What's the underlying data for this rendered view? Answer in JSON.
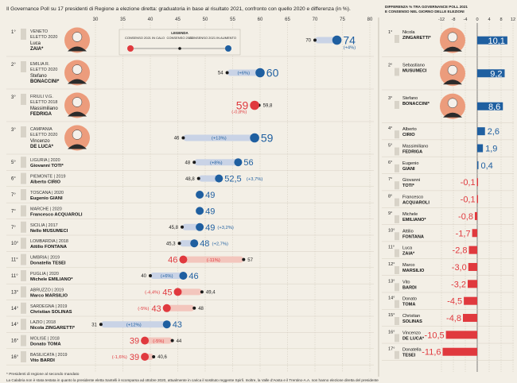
{
  "header": {
    "left_title": "Il Governance Poll su 17 presidenti di Regione a elezione diretta: graduatoria in base al risultato 2021, confronto con quello 2020 e differenza (in %).",
    "right_title_line1": "DIFFERENZA % TRA GOVERNANCE POLL 2021",
    "right_title_line2": "E CONSENSO NEL GIORNO DELLE ELEZIONI"
  },
  "legend": {
    "title": "LEGENDA",
    "down": "CONSENSO 2021 IN CALO",
    "mid": "CONSENSO 2020",
    "up": "CONSENSO 2021 IN AUMENTO"
  },
  "footnotes": {
    "note1": "* Presidenti di regione al secondo mandato",
    "note2": "La Calabria non è stata testata in quanto la presidente eletta Santelli è scomparsa ad ottobre 2020, attualmente in carica il sostituto reggente Spirlì. Inoltre, la Valle d'Aosta e il Trentino-A.A. non hanno elezione diretta del presidente"
  },
  "colors": {
    "increase": "#1f5fa0",
    "decrease": "#e0393e",
    "prev": "#1a1a1a",
    "band_up": "#c9d3e6",
    "band_down": "#f3c6bd",
    "background": "#f3efe6",
    "avatar": "#ec9c7c",
    "rank_box": "#d8d3c8"
  },
  "chart_data": [
    {
      "type": "dot-arrow",
      "x_ticks": [
        30,
        35,
        40,
        45,
        50,
        55,
        60,
        65,
        70,
        75,
        80
      ],
      "xlim": [
        30,
        80
      ],
      "rows": [
        {
          "rank": "1°",
          "region": "VENETO",
          "elected": "ELETTO 2020",
          "first": "Luca",
          "last": "ZAIA*",
          "v2020": 70,
          "v2021": 74,
          "diff": "(+4%)",
          "diff_in_band": false,
          "trend": "up",
          "prev_label": "70",
          "value_label": "74"
        },
        {
          "rank": "2°",
          "region": "EMILIA R.",
          "elected": "ELETTO 2020",
          "first": "Stefano",
          "last": "BONACCINI*",
          "v2020": 54,
          "v2021": 60,
          "diff": "(+6%)",
          "diff_in_band": true,
          "trend": "up",
          "prev_label": "54",
          "value_label": "60"
        },
        {
          "rank": "3°",
          "region": "FRIULI V.G.",
          "elected": "ELETTO 2018",
          "first": "Massimiliano",
          "last": "FEDRIGA",
          "v2020": 59.8,
          "v2021": 59,
          "diff": "(-0,8%)",
          "diff_in_band": false,
          "trend": "down",
          "prev_label": "59,8",
          "value_label": "59"
        },
        {
          "rank": "3°",
          "region": "CAMPANIA",
          "elected": "ELETTO 2020",
          "first": "Vincenzo",
          "last": "DE LUCA*",
          "v2020": 46,
          "v2021": 59,
          "diff": "(+13%)",
          "diff_in_band": true,
          "trend": "up",
          "prev_label": "46",
          "value_label": "59"
        },
        {
          "rank": "5°",
          "region": "LIGURIA | 2020",
          "elected": "",
          "first": "",
          "last": "Giovanni TOTI*",
          "v2020": 48,
          "v2021": 56,
          "diff": "(+8%)",
          "diff_in_band": true,
          "trend": "up",
          "prev_label": "48",
          "value_label": "56"
        },
        {
          "rank": "6°",
          "region": "PIEMONTE | 2019",
          "elected": "",
          "first": "",
          "last": "Alberto CIRIO",
          "v2020": 48.8,
          "v2021": 52.5,
          "diff": "(+3,7%)",
          "diff_in_band": false,
          "trend": "up",
          "prev_label": "48,8",
          "value_label": "52,5"
        },
        {
          "rank": "7°",
          "region": "TOSCANA | 2020",
          "elected": "",
          "first": "",
          "last": "Eugenio GIANI",
          "v2020": 49,
          "v2021": 49,
          "diff": "",
          "diff_in_band": false,
          "trend": "same",
          "prev_label": "",
          "value_label": "49"
        },
        {
          "rank": "7°",
          "region": "MARCHE | 2020",
          "elected": "",
          "first": "",
          "last": "Francesco ACQUAROLI",
          "v2020": 49,
          "v2021": 49,
          "diff": "",
          "diff_in_band": false,
          "trend": "same",
          "prev_label": "",
          "value_label": "49"
        },
        {
          "rank": "7°",
          "region": "SICILIA | 2017",
          "elected": "",
          "first": "",
          "last": "Nello MUSUMECI",
          "v2020": 45.8,
          "v2021": 49,
          "diff": "(+3,2%)",
          "diff_in_band": false,
          "trend": "up",
          "prev_label": "45,8",
          "value_label": "49"
        },
        {
          "rank": "10°",
          "region": "LOMBARDIA | 2018",
          "elected": "",
          "first": "",
          "last": "Attilio FONTANA",
          "v2020": 45.3,
          "v2021": 48,
          "diff": "(+2,7%)",
          "diff_in_band": false,
          "trend": "up",
          "prev_label": "45,3",
          "value_label": "48"
        },
        {
          "rank": "11°",
          "region": "UMBRIA | 2019",
          "elected": "",
          "first": "",
          "last": "Donatella TESEI",
          "v2020": 57,
          "v2021": 46,
          "diff": "(-11%)",
          "diff_in_band": true,
          "trend": "down",
          "prev_label": "57",
          "value_label": "46"
        },
        {
          "rank": "11°",
          "region": "PUGLIA | 2020",
          "elected": "",
          "first": "",
          "last": "Michele EMILIANO*",
          "v2020": 40,
          "v2021": 46,
          "diff": "(+6%)",
          "diff_in_band": true,
          "trend": "up",
          "prev_label": "40",
          "value_label": "46"
        },
        {
          "rank": "13°",
          "region": "ABRUZZO | 2019",
          "elected": "",
          "first": "",
          "last": "Marco MARSILIO",
          "v2020": 49.4,
          "v2021": 45,
          "diff": "(-4,4%)",
          "diff_in_band": false,
          "trend": "down",
          "prev_label": "49,4",
          "value_label": "45"
        },
        {
          "rank": "14°",
          "region": "SARDEGNA | 2019",
          "elected": "",
          "first": "",
          "last": "Christian SOLINAS",
          "v2020": 48,
          "v2021": 43,
          "diff": "(-5%)",
          "diff_in_band": false,
          "trend": "down",
          "prev_label": "48",
          "value_label": "43"
        },
        {
          "rank": "14°",
          "region": "LAZIO | 2018",
          "elected": "",
          "first": "",
          "last": "Nicola ZINGARETTI*",
          "v2020": 31,
          "v2021": 43,
          "diff": "(+12%)",
          "diff_in_band": true,
          "trend": "up",
          "prev_label": "31",
          "value_label": "43"
        },
        {
          "rank": "16°",
          "region": "MOLISE | 2018",
          "elected": "",
          "first": "",
          "last": "Donato TOMA",
          "v2020": 44,
          "v2021": 39,
          "diff": "(-5%)",
          "diff_in_band": true,
          "trend": "down",
          "prev_label": "44",
          "value_label": "39"
        },
        {
          "rank": "16°",
          "region": "BASILICATA | 2019",
          "elected": "",
          "first": "",
          "last": "Vito BARDI",
          "v2020": 40.6,
          "v2021": 39,
          "diff": "(-1,6%)",
          "diff_in_band": false,
          "trend": "down",
          "prev_label": "40,6",
          "value_label": "39"
        }
      ]
    },
    {
      "type": "bar",
      "x_ticks": [
        -12,
        -8,
        -4,
        0,
        4,
        8,
        12
      ],
      "xlim": [
        -12,
        12
      ],
      "rows": [
        {
          "rank": "1°",
          "first": "Nicola",
          "last": "ZINGARETTI*",
          "value": 10.1,
          "label": "10,1"
        },
        {
          "rank": "2°",
          "first": "Sebastiano",
          "last": "MUSUMECI",
          "value": 9.2,
          "label": "9,2"
        },
        {
          "rank": "3°",
          "first": "Stefano",
          "last": "BONACCINI*",
          "value": 8.6,
          "label": "8,6"
        },
        {
          "rank": "4°",
          "first": "Alberto",
          "last": "CIRIO",
          "value": 2.6,
          "label": "2,6"
        },
        {
          "rank": "5°",
          "first": "Massimiliano",
          "last": "FEDRIGA",
          "value": 1.9,
          "label": "1,9"
        },
        {
          "rank": "6°",
          "first": "Eugenio",
          "last": "GIANI",
          "value": 0.4,
          "label": "0,4"
        },
        {
          "rank": "7°",
          "first": "Giovanni",
          "last": "TOTI*",
          "value": -0.1,
          "label": "-0,1"
        },
        {
          "rank": "8°",
          "first": "Francesco",
          "last": "ACQUAROLI",
          "value": -0.1,
          "label": "-0,1"
        },
        {
          "rank": "9°",
          "first": "Michele",
          "last": "EMILIANO*",
          "value": -0.8,
          "label": "-0,8"
        },
        {
          "rank": "10°",
          "first": "Attilio",
          "last": "FONTANA",
          "value": -1.7,
          "label": "-1,7"
        },
        {
          "rank": "11°",
          "first": "Luca",
          "last": "ZAIA*",
          "value": -2.8,
          "label": "-2,8"
        },
        {
          "rank": "12°",
          "first": "Marco",
          "last": "MARSILIO",
          "value": -3.0,
          "label": "-3,0"
        },
        {
          "rank": "13°",
          "first": "Vito",
          "last": "BARDI",
          "value": -3.2,
          "label": "-3,2"
        },
        {
          "rank": "14°",
          "first": "Donato",
          "last": "TOMA",
          "value": -4.5,
          "label": "-4,5"
        },
        {
          "rank": "15°",
          "first": "Christian",
          "last": "SOLINAS",
          "value": -4.8,
          "label": "-4,8"
        },
        {
          "rank": "16°",
          "first": "Vincenzo",
          "last": "DE LUCA*",
          "value": -10.5,
          "label": "-10,5"
        },
        {
          "rank": "17°",
          "first": "Donatella",
          "last": "TESEI",
          "value": -11.6,
          "label": "-11,6"
        }
      ]
    }
  ]
}
